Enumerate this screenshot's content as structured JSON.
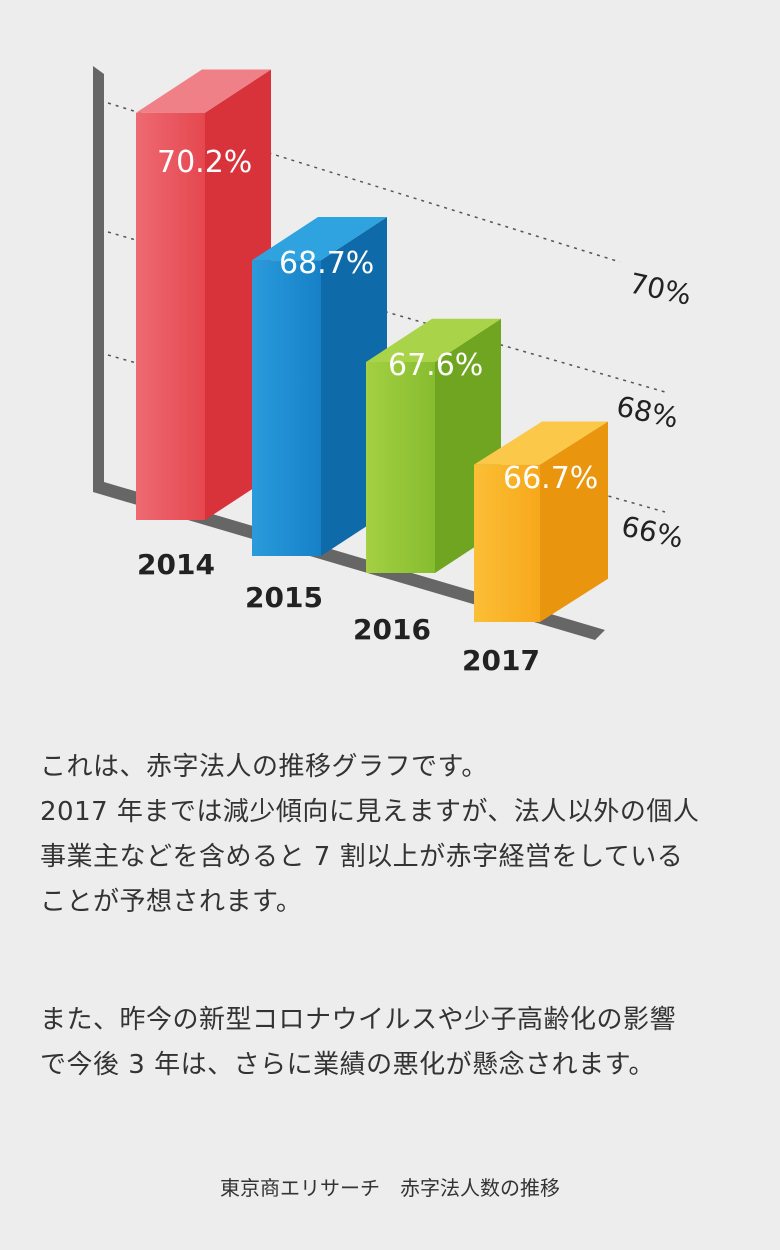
{
  "chart_data": {
    "type": "bar",
    "categories": [
      "2014",
      "2015",
      "2016",
      "2017"
    ],
    "values": [
      70.2,
      68.7,
      67.6,
      66.7
    ],
    "value_labels": [
      "70.2%",
      "68.7%",
      "67.6%",
      "66.7%"
    ],
    "y_ticks": [
      "70%",
      "68%",
      "66%"
    ],
    "bar_colors": [
      "#e23a43",
      "#1a86c8",
      "#8cc63f",
      "#f7a81b"
    ],
    "grid": "dotted",
    "style": "3d-perspective"
  },
  "description": {
    "paragraph1_lines": [
      "これは、赤字法人の推移グラフです。",
      "2017 年までは減少傾向に見えますが、法人以外の個人",
      "事業主などを含めると 7 割以上が赤字経営をしている",
      "ことが予想されます。"
    ],
    "paragraph2_lines": [
      "また、昨今の新型コロナウイルスや少子高齢化の影響",
      "で今後 3 年は、さらに業績の悪化が懸念されます。"
    ]
  },
  "caption": "東京商エリサーチ　赤字法人数の推移"
}
